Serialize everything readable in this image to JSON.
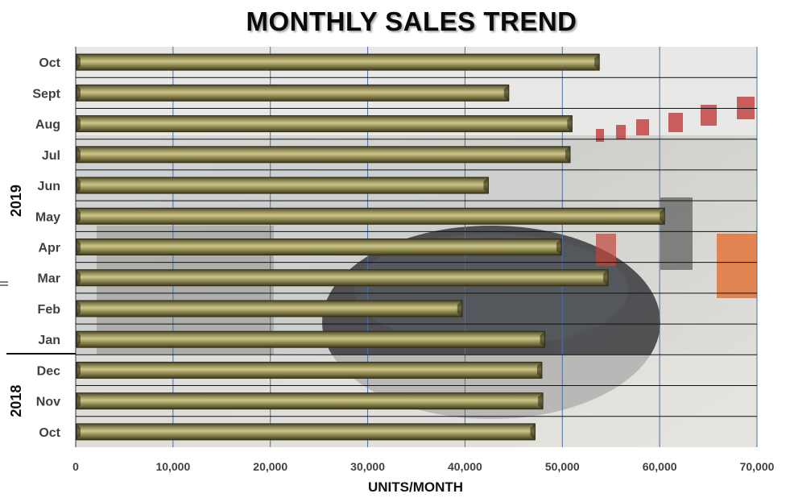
{
  "title": "MONTHLY SALES TREND",
  "chart_data": {
    "type": "bar",
    "orientation": "horizontal",
    "title": "MONTHLY SALES TREND",
    "xlabel": "UNITS/MONTH",
    "ylabel": "",
    "xlim": [
      0,
      70000
    ],
    "x_ticks": [
      "0",
      "10,000",
      "20,000",
      "30,000",
      "40,000",
      "50,000",
      "60,000",
      "70,000"
    ],
    "grid": "vertical",
    "categories": [
      "Oct",
      "Nov",
      "Dec",
      "Jan",
      "Feb",
      "Mar",
      "Apr",
      "May",
      "Jun",
      "Jul",
      "Aug",
      "Sept",
      "Oct"
    ],
    "groups": [
      {
        "label": "2018",
        "categories": [
          "Oct",
          "Nov",
          "Dec"
        ]
      },
      {
        "label": "2019",
        "categories": [
          "Jan",
          "Feb",
          "Mar",
          "Apr",
          "May",
          "Jun",
          "Jul",
          "Aug",
          "Sept",
          "Oct"
        ]
      }
    ],
    "values": [
      47200,
      48000,
      47900,
      48200,
      39700,
      54700,
      49900,
      60500,
      42400,
      50800,
      51000,
      44500,
      53800
    ],
    "bar_color": "#a09a62",
    "background": "photo of car dealership showroom"
  }
}
